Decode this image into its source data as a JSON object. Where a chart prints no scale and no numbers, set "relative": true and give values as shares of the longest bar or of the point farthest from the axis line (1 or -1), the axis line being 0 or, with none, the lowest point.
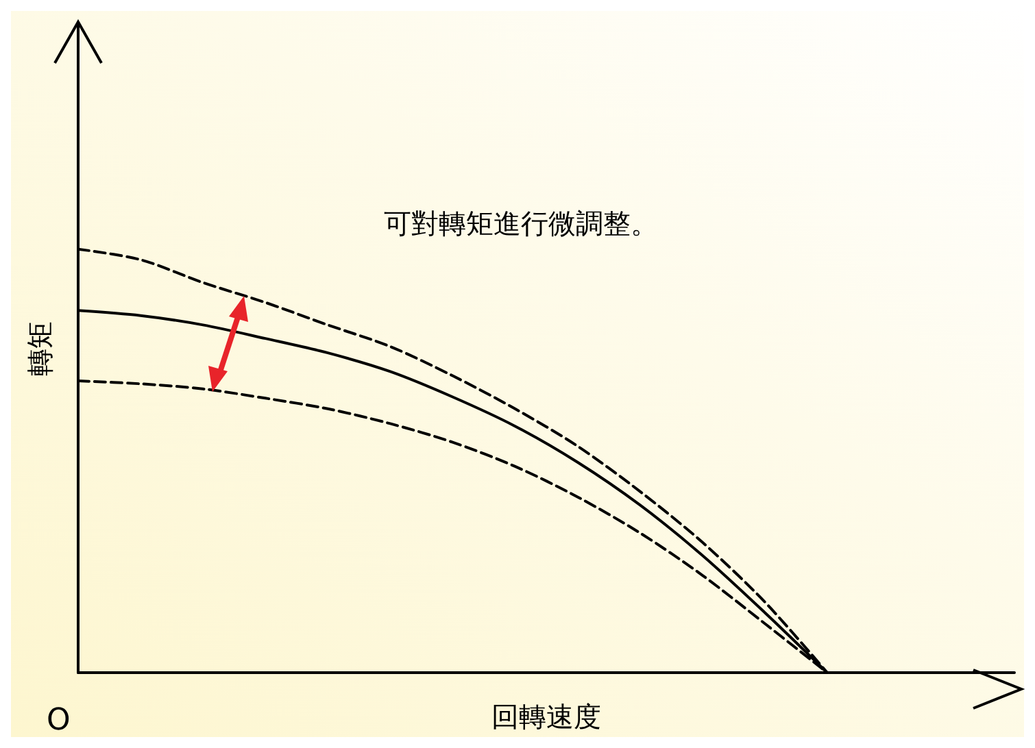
{
  "chart_data": {
    "type": "line",
    "relative": true,
    "xlabel": "回轉速度",
    "ylabel": "轉矩",
    "marker": "none",
    "annotations": [
      "可對轉矩進行微調整。",
      "O"
    ],
    "categories": [
      null,
      null,
      null,
      null,
      null,
      null,
      null,
      null,
      null,
      null,
      null,
      null,
      null,
      null,
      null,
      null
    ],
    "series": [
      {
        "color": "#000000",
        "line_style": "dashed",
        "values": [
          1,
          0.975,
          0.921,
          0.874,
          0.821,
          0.77,
          0.701,
          0.623,
          0.535,
          0.428,
          0.308,
          0.167,
          0,
          null,
          null,
          null
        ]
      },
      {
        "color": "#000000",
        "line_style": "solid",
        "values": [
          0.855,
          0.843,
          0.821,
          0.789,
          0.755,
          0.711,
          0.651,
          0.582,
          0.497,
          0.396,
          0.277,
          0.142,
          0,
          null,
          null,
          null
        ]
      },
      {
        "color": "#000000",
        "line_style": "dashed",
        "values": [
          0.689,
          0.682,
          0.67,
          0.648,
          0.623,
          0.588,
          0.544,
          0.487,
          0.415,
          0.33,
          0.23,
          0.116,
          0,
          null,
          null,
          null
        ]
      }
    ]
  }
}
